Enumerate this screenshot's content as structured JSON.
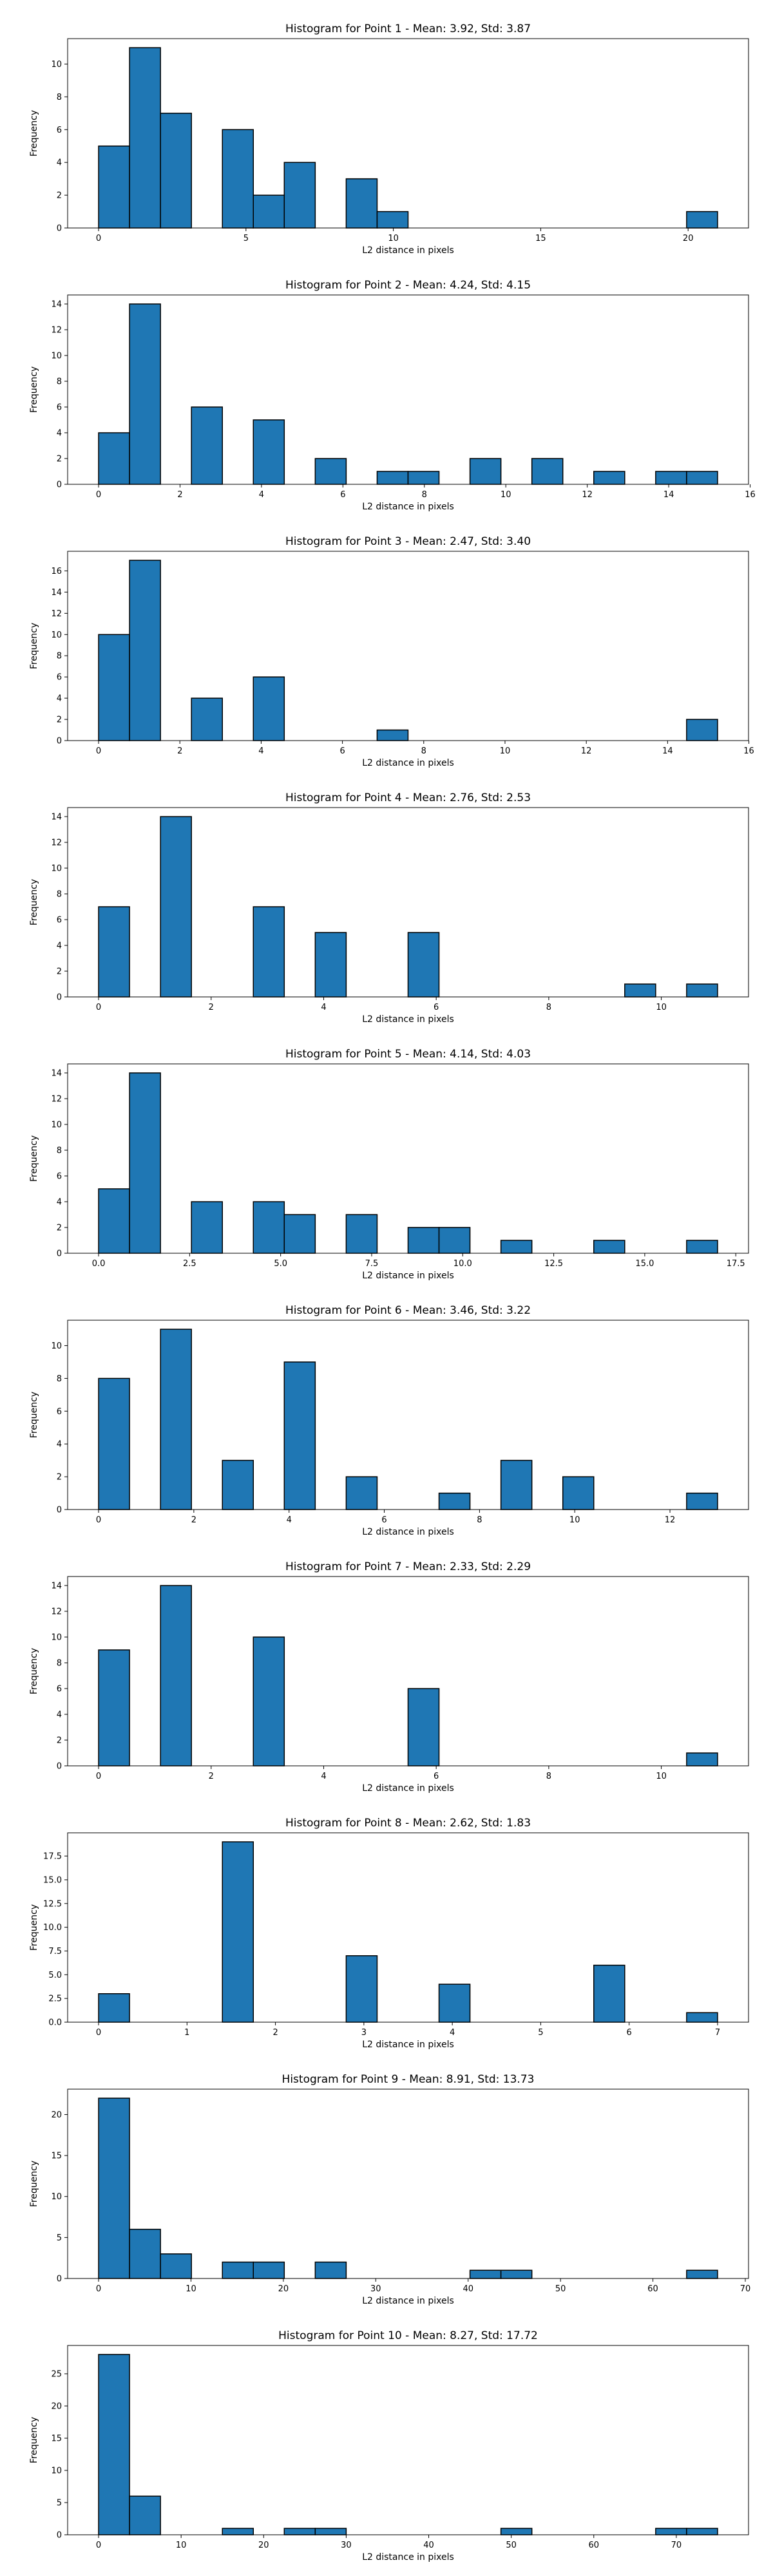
{
  "style": {
    "bar_fill": "#1f77b4",
    "bar_edge": "#000000",
    "grid": false
  },
  "chart_data": [
    {
      "type": "bar",
      "title": "Histogram for Point 1 - Mean: 3.92, Std: 3.87",
      "xlabel": "L2 distance in pixels",
      "ylabel": "Frequency",
      "xlim": [
        -1.05,
        22.05
      ],
      "ylim": [
        0,
        11.55
      ],
      "xticks": [
        0,
        5,
        10,
        15,
        20
      ],
      "xtick_labels": [
        "0",
        "5",
        "10",
        "15",
        "20"
      ],
      "yticks": [
        0,
        2,
        4,
        6,
        8,
        10
      ],
      "ytick_labels": [
        "0",
        "2",
        "4",
        "6",
        "8",
        "10"
      ],
      "bins": [
        {
          "x0": 0.0,
          "x1": 1.05,
          "count": 5
        },
        {
          "x0": 1.05,
          "x1": 2.1,
          "count": 11
        },
        {
          "x0": 2.1,
          "x1": 3.15,
          "count": 7
        },
        {
          "x0": 4.2,
          "x1": 5.25,
          "count": 6
        },
        {
          "x0": 5.25,
          "x1": 6.3,
          "count": 2
        },
        {
          "x0": 6.3,
          "x1": 7.35,
          "count": 4
        },
        {
          "x0": 8.4,
          "x1": 9.45,
          "count": 3
        },
        {
          "x0": 9.45,
          "x1": 10.5,
          "count": 1
        },
        {
          "x0": 19.95,
          "x1": 21.0,
          "count": 1
        }
      ]
    },
    {
      "type": "bar",
      "title": "Histogram for Point 2 - Mean: 4.24, Std: 4.15",
      "xlabel": "L2 distance in pixels",
      "ylabel": "Frequency",
      "xlim": [
        -0.76,
        15.96
      ],
      "ylim": [
        0,
        14.7
      ],
      "xticks": [
        0,
        2,
        4,
        6,
        8,
        10,
        12,
        14,
        16
      ],
      "xtick_labels": [
        "0",
        "2",
        "4",
        "6",
        "8",
        "10",
        "12",
        "14",
        "16"
      ],
      "yticks": [
        0,
        2,
        4,
        6,
        8,
        10,
        12,
        14
      ],
      "ytick_labels": [
        "0",
        "2",
        "4",
        "6",
        "8",
        "10",
        "12",
        "14"
      ],
      "bins": [
        {
          "x0": 0.0,
          "x1": 0.76,
          "count": 4
        },
        {
          "x0": 0.76,
          "x1": 1.52,
          "count": 14
        },
        {
          "x0": 2.28,
          "x1": 3.04,
          "count": 6
        },
        {
          "x0": 3.8,
          "x1": 4.56,
          "count": 5
        },
        {
          "x0": 5.32,
          "x1": 6.08,
          "count": 2
        },
        {
          "x0": 6.84,
          "x1": 7.6,
          "count": 1
        },
        {
          "x0": 7.6,
          "x1": 8.36,
          "count": 1
        },
        {
          "x0": 9.12,
          "x1": 9.88,
          "count": 2
        },
        {
          "x0": 10.64,
          "x1": 11.4,
          "count": 2
        },
        {
          "x0": 12.16,
          "x1": 12.92,
          "count": 1
        },
        {
          "x0": 13.68,
          "x1": 14.44,
          "count": 1
        },
        {
          "x0": 14.44,
          "x1": 15.2,
          "count": 1
        }
      ]
    },
    {
      "type": "bar",
      "title": "Histogram for Point 3 - Mean: 2.47, Std: 3.40",
      "xlabel": "L2 distance in pixels",
      "ylabel": "Frequency",
      "xlim": [
        -0.7615,
        15.9915
      ],
      "ylim": [
        0,
        17.85
      ],
      "xticks": [
        0,
        2,
        4,
        6,
        8,
        10,
        12,
        14,
        16
      ],
      "xtick_labels": [
        "0",
        "2",
        "4",
        "6",
        "8",
        "10",
        "12",
        "14",
        "16"
      ],
      "yticks": [
        0,
        2,
        4,
        6,
        8,
        10,
        12,
        14,
        16
      ],
      "ytick_labels": [
        "0",
        "2",
        "4",
        "6",
        "8",
        "10",
        "12",
        "14",
        "16"
      ],
      "bins": [
        {
          "x0": 0.0,
          "x1": 0.7615,
          "count": 10
        },
        {
          "x0": 0.7615,
          "x1": 1.523,
          "count": 17
        },
        {
          "x0": 2.2845,
          "x1": 3.046,
          "count": 4
        },
        {
          "x0": 3.8075,
          "x1": 4.569,
          "count": 6
        },
        {
          "x0": 6.853,
          "x1": 7.6145,
          "count": 1
        },
        {
          "x0": 14.468,
          "x1": 15.23,
          "count": 2
        }
      ]
    },
    {
      "type": "bar",
      "title": "Histogram for Point 4 - Mean: 2.76, Std: 2.53",
      "xlabel": "L2 distance in pixels",
      "ylabel": "Frequency",
      "xlim": [
        -0.55,
        11.55
      ],
      "ylim": [
        0,
        14.7
      ],
      "xticks": [
        0,
        2,
        4,
        6,
        8,
        10
      ],
      "xtick_labels": [
        "0",
        "2",
        "4",
        "6",
        "8",
        "10"
      ],
      "yticks": [
        0,
        2,
        4,
        6,
        8,
        10,
        12,
        14
      ],
      "ytick_labels": [
        "0",
        "2",
        "4",
        "6",
        "8",
        "10",
        "12",
        "14"
      ],
      "bins": [
        {
          "x0": 0.0,
          "x1": 0.55,
          "count": 7
        },
        {
          "x0": 1.1,
          "x1": 1.65,
          "count": 14
        },
        {
          "x0": 2.75,
          "x1": 3.3,
          "count": 7
        },
        {
          "x0": 3.85,
          "x1": 4.4,
          "count": 5
        },
        {
          "x0": 5.5,
          "x1": 6.05,
          "count": 5
        },
        {
          "x0": 9.35,
          "x1": 9.9,
          "count": 1
        },
        {
          "x0": 10.45,
          "x1": 11.0,
          "count": 1
        }
      ]
    },
    {
      "type": "bar",
      "title": "Histogram for Point 5 - Mean: 4.14, Std: 4.03",
      "xlabel": "L2 distance in pixels",
      "ylabel": "Frequency",
      "xlim": [
        -0.85,
        17.85
      ],
      "ylim": [
        0,
        14.7
      ],
      "xticks": [
        0,
        2.5,
        5,
        7.5,
        10,
        12.5,
        15,
        17.5
      ],
      "xtick_labels": [
        "0.0",
        "2.5",
        "5.0",
        "7.5",
        "10.0",
        "12.5",
        "15.0",
        "17.5"
      ],
      "yticks": [
        0,
        2,
        4,
        6,
        8,
        10,
        12,
        14
      ],
      "ytick_labels": [
        "0",
        "2",
        "4",
        "6",
        "8",
        "10",
        "12",
        "14"
      ],
      "bins": [
        {
          "x0": 0.0,
          "x1": 0.85,
          "count": 5
        },
        {
          "x0": 0.85,
          "x1": 1.7,
          "count": 14
        },
        {
          "x0": 2.55,
          "x1": 3.4,
          "count": 4
        },
        {
          "x0": 4.25,
          "x1": 5.1,
          "count": 4
        },
        {
          "x0": 5.1,
          "x1": 5.95,
          "count": 3
        },
        {
          "x0": 6.8,
          "x1": 7.65,
          "count": 3
        },
        {
          "x0": 8.5,
          "x1": 9.35,
          "count": 2
        },
        {
          "x0": 9.35,
          "x1": 10.2,
          "count": 2
        },
        {
          "x0": 11.05,
          "x1": 11.9,
          "count": 1
        },
        {
          "x0": 13.6,
          "x1": 14.45,
          "count": 1
        },
        {
          "x0": 16.15,
          "x1": 17.0,
          "count": 1
        }
      ]
    },
    {
      "type": "bar",
      "title": "Histogram for Point 6 - Mean: 3.46, Std: 3.22",
      "xlabel": "L2 distance in pixels",
      "ylabel": "Frequency",
      "xlim": [
        -0.65,
        13.65
      ],
      "ylim": [
        0,
        11.55
      ],
      "xticks": [
        0,
        2,
        4,
        6,
        8,
        10,
        12
      ],
      "xtick_labels": [
        "0",
        "2",
        "4",
        "6",
        "8",
        "10",
        "12"
      ],
      "yticks": [
        0,
        2,
        4,
        6,
        8,
        10
      ],
      "ytick_labels": [
        "0",
        "2",
        "4",
        "6",
        "8",
        "10"
      ],
      "bins": [
        {
          "x0": 0.0,
          "x1": 0.65,
          "count": 8
        },
        {
          "x0": 1.3,
          "x1": 1.95,
          "count": 11
        },
        {
          "x0": 2.6,
          "x1": 3.25,
          "count": 3
        },
        {
          "x0": 3.9,
          "x1": 4.55,
          "count": 9
        },
        {
          "x0": 5.2,
          "x1": 5.85,
          "count": 2
        },
        {
          "x0": 7.15,
          "x1": 7.8,
          "count": 1
        },
        {
          "x0": 8.45,
          "x1": 9.1,
          "count": 3
        },
        {
          "x0": 9.75,
          "x1": 10.4,
          "count": 2
        },
        {
          "x0": 12.35,
          "x1": 13.0,
          "count": 1
        }
      ]
    },
    {
      "type": "bar",
      "title": "Histogram for Point 7 - Mean: 2.33, Std: 2.29",
      "xlabel": "L2 distance in pixels",
      "ylabel": "Frequency",
      "xlim": [
        -0.55,
        11.55
      ],
      "ylim": [
        0,
        14.7
      ],
      "xticks": [
        0,
        2,
        4,
        6,
        8,
        10
      ],
      "xtick_labels": [
        "0",
        "2",
        "4",
        "6",
        "8",
        "10"
      ],
      "yticks": [
        0,
        2,
        4,
        6,
        8,
        10,
        12,
        14
      ],
      "ytick_labels": [
        "0",
        "2",
        "4",
        "6",
        "8",
        "10",
        "12",
        "14"
      ],
      "bins": [
        {
          "x0": 0.0,
          "x1": 0.55,
          "count": 9
        },
        {
          "x0": 1.1,
          "x1": 1.65,
          "count": 14
        },
        {
          "x0": 2.75,
          "x1": 3.3,
          "count": 10
        },
        {
          "x0": 5.5,
          "x1": 6.05,
          "count": 6
        },
        {
          "x0": 10.45,
          "x1": 11.0,
          "count": 1
        }
      ]
    },
    {
      "type": "bar",
      "title": "Histogram for Point 8 - Mean: 2.62, Std: 1.83",
      "xlabel": "L2 distance in pixels",
      "ylabel": "Frequency",
      "xlim": [
        -0.35,
        7.35
      ],
      "ylim": [
        0,
        19.95
      ],
      "xticks": [
        0,
        1,
        2,
        3,
        4,
        5,
        6,
        7
      ],
      "xtick_labels": [
        "0",
        "1",
        "2",
        "3",
        "4",
        "5",
        "6",
        "7"
      ],
      "yticks": [
        0,
        2.5,
        5,
        7.5,
        10,
        12.5,
        15,
        17.5
      ],
      "ytick_labels": [
        "0.0",
        "2.5",
        "5.0",
        "7.5",
        "10.0",
        "12.5",
        "15.0",
        "17.5"
      ],
      "bins": [
        {
          "x0": 0.0,
          "x1": 0.35,
          "count": 3
        },
        {
          "x0": 1.4,
          "x1": 1.75,
          "count": 19
        },
        {
          "x0": 2.8,
          "x1": 3.15,
          "count": 7
        },
        {
          "x0": 3.85,
          "x1": 4.2,
          "count": 4
        },
        {
          "x0": 5.6,
          "x1": 5.95,
          "count": 6
        },
        {
          "x0": 6.65,
          "x1": 7.0,
          "count": 1
        }
      ]
    },
    {
      "type": "bar",
      "title": "Histogram for Point 9 - Mean: 8.91, Std: 13.73",
      "xlabel": "L2 distance in pixels",
      "ylabel": "Frequency",
      "xlim": [
        -3.35,
        70.35
      ],
      "ylim": [
        0,
        23.1
      ],
      "xticks": [
        0,
        10,
        20,
        30,
        40,
        50,
        60,
        70
      ],
      "xtick_labels": [
        "0",
        "10",
        "20",
        "30",
        "40",
        "50",
        "60",
        "70"
      ],
      "yticks": [
        0,
        5,
        10,
        15,
        20
      ],
      "ytick_labels": [
        "0",
        "5",
        "10",
        "15",
        "20"
      ],
      "bins": [
        {
          "x0": 0.0,
          "x1": 3.35,
          "count": 22
        },
        {
          "x0": 3.35,
          "x1": 6.7,
          "count": 6
        },
        {
          "x0": 6.7,
          "x1": 10.05,
          "count": 3
        },
        {
          "x0": 13.4,
          "x1": 16.75,
          "count": 2
        },
        {
          "x0": 16.75,
          "x1": 20.1,
          "count": 2
        },
        {
          "x0": 23.45,
          "x1": 26.8,
          "count": 2
        },
        {
          "x0": 40.2,
          "x1": 43.55,
          "count": 1
        },
        {
          "x0": 43.55,
          "x1": 46.9,
          "count": 1
        },
        {
          "x0": 63.65,
          "x1": 67.0,
          "count": 1
        }
      ]
    },
    {
      "type": "bar",
      "title": "Histogram for Point 10 - Mean: 8.27, Std: 17.72",
      "xlabel": "L2 distance in pixels",
      "ylabel": "Frequency",
      "xlim": [
        -3.75,
        78.75
      ],
      "ylim": [
        0,
        29.4
      ],
      "xticks": [
        0,
        10,
        20,
        30,
        40,
        50,
        60,
        70
      ],
      "xtick_labels": [
        "0",
        "10",
        "20",
        "30",
        "40",
        "50",
        "60",
        "70"
      ],
      "yticks": [
        0,
        5,
        10,
        15,
        20,
        25
      ],
      "ytick_labels": [
        "0",
        "5",
        "10",
        "15",
        "20",
        "25"
      ],
      "bins": [
        {
          "x0": 0.0,
          "x1": 3.75,
          "count": 28
        },
        {
          "x0": 3.75,
          "x1": 7.5,
          "count": 6
        },
        {
          "x0": 15.0,
          "x1": 18.75,
          "count": 1
        },
        {
          "x0": 22.5,
          "x1": 26.25,
          "count": 1
        },
        {
          "x0": 26.25,
          "x1": 30.0,
          "count": 1
        },
        {
          "x0": 48.75,
          "x1": 52.5,
          "count": 1
        },
        {
          "x0": 67.5,
          "x1": 71.25,
          "count": 1
        },
        {
          "x0": 71.25,
          "x1": 75.0,
          "count": 1
        }
      ]
    }
  ]
}
